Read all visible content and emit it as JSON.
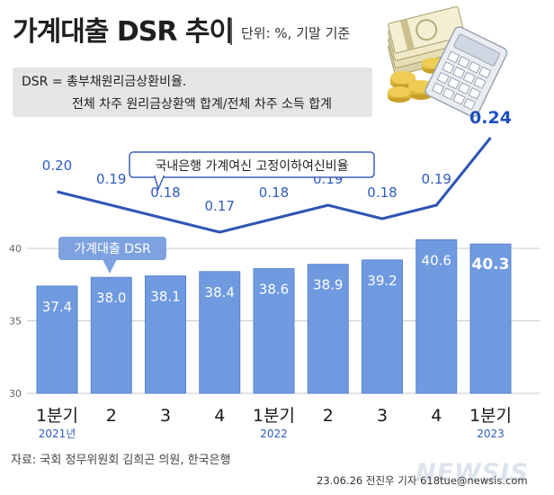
{
  "title": "가계대출 DSR 추이",
  "unit": "단위: %, 기말 기준",
  "definition": {
    "line1": "DSR = 총부채원리금상환비율.",
    "line2": "전체 차주 원리금상환액 합계/전체 차주 소득 합계"
  },
  "source": "자료: 국회 정무위원회 김희곤 의원, 한국은행",
  "credit": "23.06.26 전진우 기자 618tue@newsis.com",
  "logo": "NEWSIS",
  "colors": {
    "bar": "#6f9ae0",
    "bar_edge": "#5a86cf",
    "line": "#2f55b4",
    "line_label": "#2f5bbd",
    "highlight": "#1d4fbf",
    "callout": "#7ea2df"
  },
  "illustration": "money-and-calculator",
  "chart_data": {
    "type": "bar+line",
    "categories": [
      "1분기",
      "2",
      "3",
      "4",
      "1분기",
      "2",
      "3",
      "4",
      "1분기"
    ],
    "year_labels": [
      {
        "index": 0,
        "label": "2021년"
      },
      {
        "index": 4,
        "label": "2022"
      },
      {
        "index": 8,
        "label": "2023"
      }
    ],
    "series": [
      {
        "name": "가계대출 DSR",
        "type": "bar",
        "values": [
          37.4,
          38.0,
          38.1,
          38.4,
          38.6,
          38.9,
          39.2,
          40.6,
          40.3
        ],
        "labels": [
          "37.4",
          "38.0",
          "38.1",
          "38.4",
          "38.6",
          "38.9",
          "39.2",
          "40.6",
          "40.3"
        ],
        "highlight_index": 8
      },
      {
        "name": "국내은행 가계여신 고정이하여신비율",
        "type": "line",
        "values": [
          0.2,
          0.19,
          0.18,
          0.17,
          0.18,
          0.19,
          0.18,
          0.19,
          0.24
        ],
        "labels": [
          "0.20",
          "0.19",
          "0.18",
          "0.17",
          "0.18",
          "0.19",
          "0.18",
          "0.19",
          "0.24"
        ],
        "highlight_index": 8
      }
    ],
    "y_axis": {
      "ticks": [
        30,
        35,
        40
      ],
      "range": [
        30,
        43
      ]
    },
    "grid": true
  }
}
